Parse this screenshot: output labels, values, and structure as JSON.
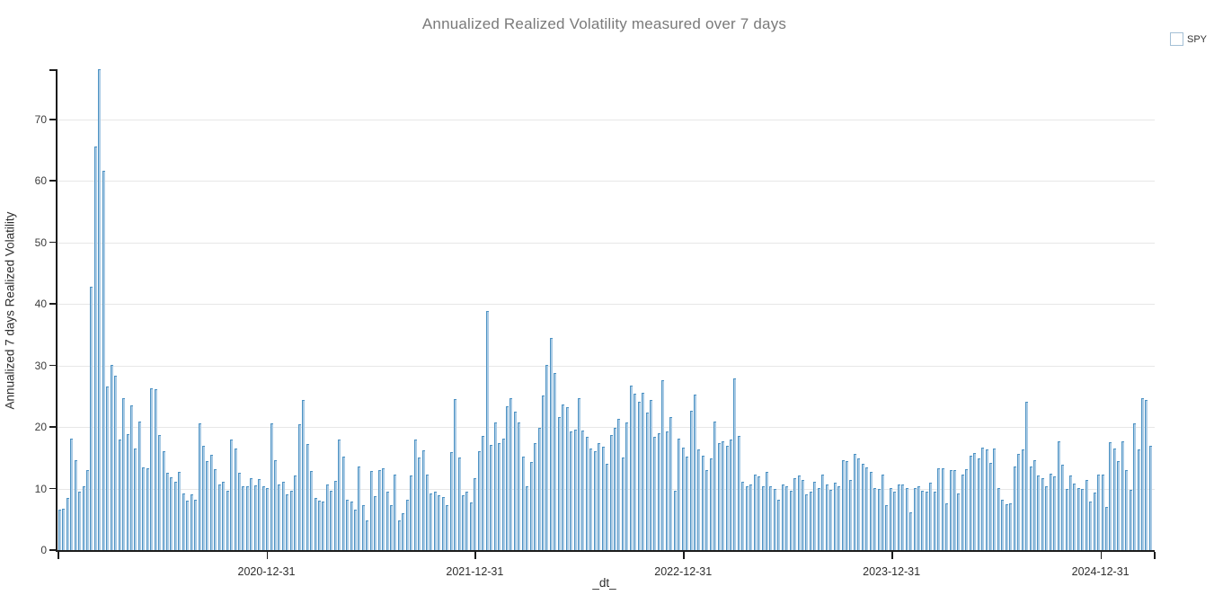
{
  "title": "Annualized Realized Volatility measured over 7 days",
  "legend": {
    "items": [
      {
        "label": "SPY",
        "color": "#5b9dc9"
      }
    ]
  },
  "colors": {
    "bar_fill": "#aacbe5",
    "bar_edge": "#4d92c3",
    "legend_swatch": "#5b9dc9",
    "grid": "#e7e7e7",
    "axis": "#1c1c1c",
    "title_text": "#7a7a7a",
    "tick_text": "#3c3c3c"
  },
  "chart_data": {
    "type": "bar",
    "title": "Annualized Realized Volatility measured over 7 days",
    "xlabel": "_dt_",
    "ylabel": "Annualized 7 days Realized Volatility",
    "ylim": [
      0,
      78.03
    ],
    "y_ticks": [
      0,
      10,
      20,
      30,
      40,
      50,
      60,
      70
    ],
    "x_ticks": [
      "2020-12-31",
      "2021-12-31",
      "2022-12-31",
      "2023-12-31",
      "2024-12-31"
    ],
    "x_axis_range": [
      "2019-12-31",
      "2025-04-05"
    ],
    "grid": "horizontal-only",
    "legend_position": "top-right",
    "series": [
      {
        "name": "SPY",
        "start_date": "2020-01-03",
        "frequency": "weekly",
        "values": [
          6.5,
          6.6,
          8.4,
          18.0,
          14.5,
          9.3,
          10.2,
          12.8,
          42.7,
          65.5,
          78.0,
          61.5,
          26.4,
          30.0,
          28.2,
          17.9,
          24.6,
          18.7,
          23.4,
          16.4,
          20.7,
          13.3,
          13.2,
          26.2,
          26.0,
          18.5,
          15.9,
          12.4,
          11.7,
          10.9,
          12.6,
          9.1,
          7.9,
          8.9,
          8.0,
          20.5,
          16.8,
          14.3,
          15.3,
          13.0,
          10.5,
          11.0,
          9.5,
          17.8,
          16.4,
          12.4,
          10.2,
          10.3,
          11.5,
          10.4,
          11.4,
          10.2,
          10.0,
          20.4,
          14.4,
          10.5,
          11.0,
          8.9,
          9.5,
          12.0,
          20.3,
          24.2,
          17.1,
          12.7,
          8.4,
          7.9,
          7.8,
          10.5,
          9.5,
          11.1,
          17.9,
          15.1,
          8.1,
          7.8,
          6.4,
          13.4,
          7.2,
          4.7,
          12.7,
          8.6,
          12.8,
          13.2,
          9.3,
          7.2,
          12.2,
          4.7,
          5.9,
          8.1,
          12.0,
          17.9,
          14.9,
          16.1,
          12.2,
          9.1,
          9.3,
          8.7,
          8.5,
          7.1,
          15.8,
          24.4,
          14.9,
          8.8,
          9.4,
          7.6,
          11.5,
          16.0,
          18.4,
          38.7,
          16.9,
          20.6,
          17.3,
          18.0,
          23.2,
          24.6,
          22.3,
          20.6,
          15.1,
          10.2,
          14.2,
          17.2,
          19.7,
          25.0,
          30.0,
          34.3,
          28.6,
          21.5,
          23.6,
          23.1,
          19.2,
          19.4,
          24.5,
          19.3,
          18.2,
          16.3,
          16.0,
          17.3,
          16.6,
          13.9,
          18.5,
          19.8,
          21.2,
          14.9,
          20.6,
          26.6,
          25.3,
          24.0,
          25.4,
          22.2,
          24.3,
          18.3,
          18.8,
          27.5,
          19.2,
          21.5,
          9.5,
          18.0,
          16.5,
          15.0,
          22.5,
          25.2,
          16.2,
          15.2,
          12.8,
          14.8,
          20.8,
          17.2,
          17.5,
          16.8,
          17.8,
          27.8,
          18.4,
          11.0,
          10.3,
          10.5,
          12.2,
          11.8,
          10.2,
          12.5,
          10.3,
          9.8,
          8.0,
          10.5,
          10.2,
          9.5,
          11.5,
          12.0,
          11.2,
          8.9,
          9.3,
          10.9,
          10.0,
          12.2,
          10.5,
          9.7,
          10.8,
          10.2,
          14.5,
          14.3,
          11.2,
          15.5,
          14.7,
          13.9,
          13.3,
          12.5,
          10.0,
          9.8,
          12.1,
          7.2,
          10.0,
          9.3,
          10.5,
          10.5,
          10.0,
          6.0,
          10.0,
          10.2,
          9.5,
          9.3,
          10.8,
          9.4,
          13.2,
          13.1,
          7.5,
          12.9,
          12.8,
          9.0,
          12.1,
          13.0,
          15.2,
          15.7,
          14.8,
          16.5,
          16.2,
          14.0,
          16.4,
          10.0,
          8.0,
          7.3,
          7.5,
          13.5,
          15.5,
          16.2,
          24.0,
          13.5,
          14.4,
          12.0,
          11.5,
          10.3,
          12.3,
          11.9,
          17.5,
          13.8,
          9.8,
          12.0,
          10.6,
          10.0,
          9.8,
          11.3,
          7.8,
          9.2,
          12.2,
          12.1,
          6.8,
          17.4,
          16.3,
          14.3,
          17.6,
          12.8,
          9.6,
          20.5,
          16.2,
          24.5,
          24.2,
          16.8
        ]
      }
    ]
  }
}
